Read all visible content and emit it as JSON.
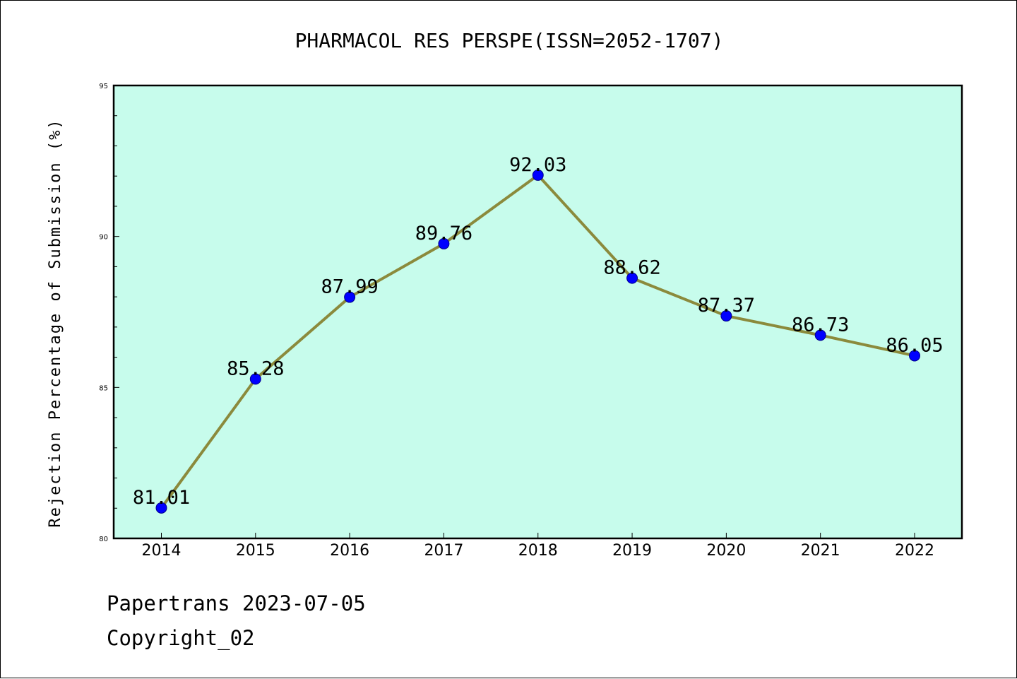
{
  "chart_data": {
    "type": "line",
    "title": "PHARMACOL RES PERSPE(ISSN=2052-1707)",
    "xlabel": "",
    "ylabel": "Rejection Percentage of Submission (%)",
    "categories": [
      "2014",
      "2015",
      "2016",
      "2017",
      "2018",
      "2019",
      "2020",
      "2021",
      "2022"
    ],
    "series": [
      {
        "values": [
          81.01,
          85.28,
          87.99,
          89.76,
          92.03,
          88.62,
          87.37,
          86.73,
          86.05
        ],
        "data_labels": [
          "81.01",
          "85.28",
          "87.99",
          "89.76",
          "92.03",
          "88.62",
          "87.37",
          "86.73",
          "86.05"
        ]
      }
    ],
    "ylim": [
      80,
      95
    ],
    "yticks": [
      80,
      85,
      90,
      95
    ],
    "ytick_labels": [
      "80",
      "85",
      "90",
      "95"
    ],
    "minor_ytick_step": 1,
    "grid": false,
    "colors": {
      "plot_background": "#c7fcec",
      "line": "#8b8a3c",
      "marker": "#0000ff",
      "marker_edge": "#00008b"
    }
  },
  "footer": {
    "date_line": "Papertrans 2023-07-05",
    "copyright_line": "Copyright_02"
  }
}
